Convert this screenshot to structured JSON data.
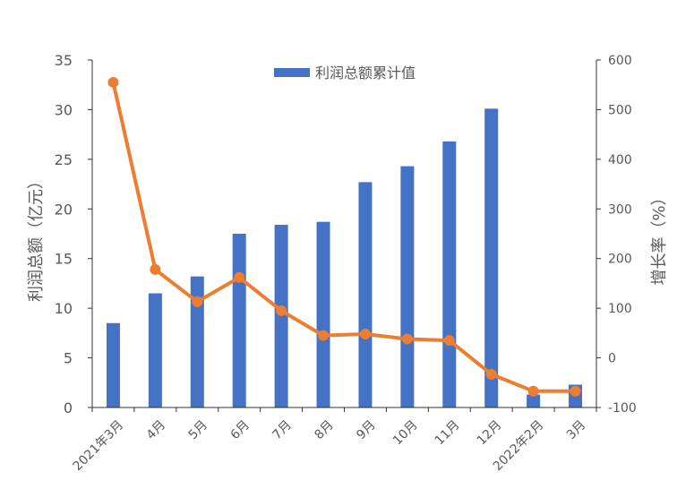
{
  "chart_data": {
    "type": "bar",
    "categories": [
      "2021年3月",
      "4月",
      "5月",
      "6月",
      "7月",
      "8月",
      "9月",
      "10月",
      "11月",
      "12月",
      "2022年2月",
      "3月"
    ],
    "series": [
      {
        "name": "利润总额累计值",
        "type": "bar",
        "axis": "left",
        "color": "#4472C4",
        "values": [
          8.5,
          11.5,
          13.2,
          17.5,
          18.4,
          18.7,
          22.7,
          24.3,
          26.8,
          30.1,
          1.3,
          2.3
        ]
      },
      {
        "name": "",
        "type": "line",
        "axis": "right",
        "color": "#ED7D31",
        "values": [
          555,
          178,
          113,
          162,
          95,
          45,
          48,
          38,
          35,
          -33,
          -67,
          -67
        ]
      }
    ],
    "ylabel": "利润总额（亿元）",
    "y2label": "增长率（%）",
    "ylim": [
      0,
      35
    ],
    "y2lim": [
      -100,
      600
    ],
    "yticks": [
      0,
      5,
      10,
      15,
      20,
      25,
      30,
      35
    ],
    "y2ticks": [
      -100,
      0,
      100,
      200,
      300,
      400,
      500,
      600
    ],
    "legend_position": "top-center",
    "grid": false
  }
}
